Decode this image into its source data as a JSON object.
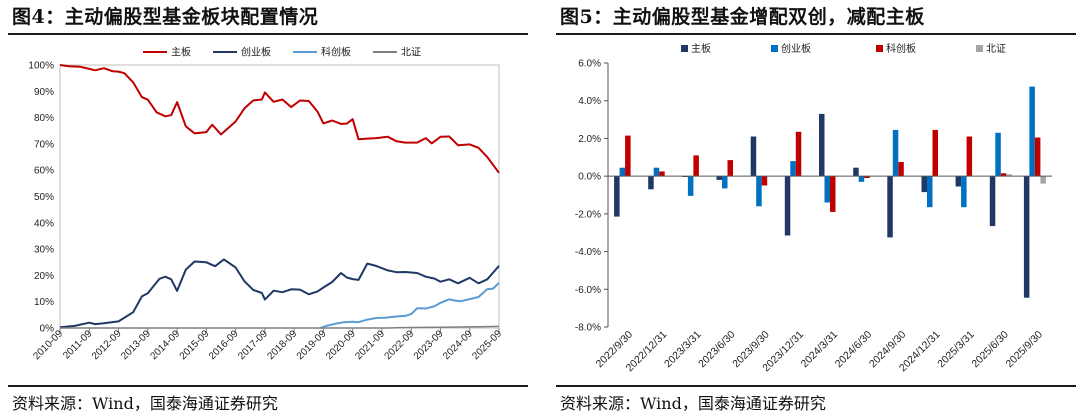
{
  "chart_data": [
    {
      "type": "line",
      "title": "图4：主动偏股型基金板块配置情况",
      "source": "资料来源：Wind，国泰海通证券研究",
      "x": [
        "2010-09",
        "2011-09",
        "2012-09",
        "2013-09",
        "2014-09",
        "2015-09",
        "2016-09",
        "2017-09",
        "2018-09",
        "2019-09",
        "2020-09",
        "2021-09",
        "2022-09",
        "2023-09",
        "2024-09",
        "2025-09"
      ],
      "yticks": [
        "0%",
        "10%",
        "20%",
        "30%",
        "40%",
        "50%",
        "60%",
        "70%",
        "80%",
        "90%",
        "100%"
      ],
      "ylim": [
        0,
        100
      ],
      "legend_position": "top",
      "series": [
        {
          "name": "主板",
          "color": "#c00000",
          "values": [
            [
              0,
              100
            ],
            [
              0.3,
              99.5
            ],
            [
              0.7,
              99.3
            ],
            [
              1,
              98.5
            ],
            [
              1.2,
              98
            ],
            [
              1.5,
              98.8
            ],
            [
              1.8,
              97.6
            ],
            [
              2,
              97.5
            ],
            [
              2.2,
              96.9
            ],
            [
              2.5,
              93.4
            ],
            [
              2.8,
              87.8
            ],
            [
              3,
              86.8
            ],
            [
              3.3,
              82
            ],
            [
              3.6,
              80.5
            ],
            [
              3.8,
              80.9
            ],
            [
              4,
              85.9
            ],
            [
              4.3,
              76.7
            ],
            [
              4.6,
              74
            ],
            [
              5,
              74.5
            ],
            [
              5.2,
              77.3
            ],
            [
              5.5,
              73.6
            ],
            [
              5.8,
              76.5
            ],
            [
              6,
              78.5
            ],
            [
              6.3,
              83.5
            ],
            [
              6.6,
              86.5
            ],
            [
              6.9,
              86.9
            ],
            [
              7,
              89.6
            ],
            [
              7.3,
              86
            ],
            [
              7.6,
              86.9
            ],
            [
              7.9,
              84
            ],
            [
              8.2,
              86.5
            ],
            [
              8.5,
              86.3
            ],
            [
              8.8,
              82.3
            ],
            [
              9,
              77.8
            ],
            [
              9.3,
              78.9
            ],
            [
              9.6,
              77.6
            ],
            [
              9.8,
              77.7
            ],
            [
              10,
              79.4
            ],
            [
              10.2,
              71.8
            ],
            [
              10.5,
              72
            ],
            [
              10.8,
              72.2
            ],
            [
              11.2,
              72.7
            ],
            [
              11.5,
              71
            ],
            [
              11.8,
              70.5
            ],
            [
              12.2,
              70.5
            ],
            [
              12.5,
              72.2
            ],
            [
              12.7,
              70.2
            ],
            [
              13,
              72.7
            ],
            [
              13.3,
              72.8
            ],
            [
              13.6,
              69.5
            ],
            [
              14,
              69.8
            ],
            [
              14.3,
              68.5
            ],
            [
              14.6,
              65
            ],
            [
              15,
              59
            ]
          ]
        },
        {
          "name": "创业板",
          "color": "#1f3864",
          "values": [
            [
              0,
              0.3
            ],
            [
              0.5,
              0.8
            ],
            [
              1,
              2
            ],
            [
              1.2,
              1.5
            ],
            [
              1.5,
              1.8
            ],
            [
              2,
              2.5
            ],
            [
              2.5,
              6
            ],
            [
              2.8,
              12
            ],
            [
              3,
              13.2
            ],
            [
              3.4,
              18.7
            ],
            [
              3.6,
              19.5
            ],
            [
              3.8,
              18.5
            ],
            [
              4,
              14.1
            ],
            [
              4.3,
              22.2
            ],
            [
              4.6,
              25.3
            ],
            [
              5,
              25
            ],
            [
              5.3,
              23.5
            ],
            [
              5.6,
              26.1
            ],
            [
              6,
              23
            ],
            [
              6.3,
              17.8
            ],
            [
              6.6,
              14.5
            ],
            [
              6.9,
              13.3
            ],
            [
              7,
              10.8
            ],
            [
              7.3,
              14.2
            ],
            [
              7.6,
              13.6
            ],
            [
              7.9,
              14.7
            ],
            [
              8.2,
              14.6
            ],
            [
              8.5,
              12.8
            ],
            [
              8.8,
              13.9
            ],
            [
              9,
              15.4
            ],
            [
              9.3,
              17.5
            ],
            [
              9.6,
              20.9
            ],
            [
              9.8,
              19.2
            ],
            [
              10,
              18.6
            ],
            [
              10.2,
              18.3
            ],
            [
              10.5,
              24.5
            ],
            [
              10.8,
              23.6
            ],
            [
              11.2,
              21.9
            ],
            [
              11.5,
              21.2
            ],
            [
              11.8,
              21.3
            ],
            [
              12.2,
              20.9
            ],
            [
              12.5,
              19.5
            ],
            [
              12.8,
              18.8
            ],
            [
              13,
              17.6
            ],
            [
              13.3,
              18.5
            ],
            [
              13.6,
              17
            ],
            [
              14,
              19.1
            ],
            [
              14.3,
              17
            ],
            [
              14.6,
              18.5
            ],
            [
              15,
              23.6
            ]
          ]
        },
        {
          "name": "科创板",
          "color": "#5b9bd5",
          "values": [
            [
              8.9,
              0
            ],
            [
              9.1,
              0.8
            ],
            [
              9.4,
              1.6
            ],
            [
              9.7,
              2.2
            ],
            [
              10,
              2.4
            ],
            [
              10.2,
              2.2
            ],
            [
              10.5,
              3.2
            ],
            [
              10.8,
              3.8
            ],
            [
              11.1,
              3.9
            ],
            [
              11.4,
              4.3
            ],
            [
              11.6,
              4.5
            ],
            [
              11.8,
              4.6
            ],
            [
              12,
              5.3
            ],
            [
              12.2,
              7.5
            ],
            [
              12.5,
              7.4
            ],
            [
              12.8,
              8.3
            ],
            [
              13,
              9.6
            ],
            [
              13.3,
              10.9
            ],
            [
              13.5,
              10.4
            ],
            [
              13.7,
              10.2
            ],
            [
              14,
              11
            ],
            [
              14.3,
              11.8
            ],
            [
              14.6,
              14.8
            ],
            [
              14.8,
              15
            ],
            [
              15,
              17.2
            ]
          ]
        },
        {
          "name": "北证",
          "color": "#7f7f7f",
          "values": [
            [
              0,
              0
            ],
            [
              11.2,
              0
            ],
            [
              11.5,
              0.1
            ],
            [
              12,
              0.2
            ],
            [
              13,
              0.3
            ],
            [
              14,
              0.4
            ],
            [
              15,
              0.6
            ]
          ]
        }
      ]
    },
    {
      "type": "bar",
      "title": "图5：主动偏股型基金增配双创，减配主板",
      "source": "资料来源：Wind，国泰海通证券研究",
      "categories": [
        "2022/9/30",
        "2022/12/31",
        "2023/3/31",
        "2023/6/30",
        "2023/9/30",
        "2023/12/31",
        "2024/3/31",
        "2024/6/30",
        "2024/9/30",
        "2024/12/31",
        "2025/3/31",
        "2025/6/30",
        "2025/9/30"
      ],
      "yticks": [
        "-8.0%",
        "-6.0%",
        "-4.0%",
        "-2.0%",
        "0.0%",
        "2.0%",
        "4.0%",
        "6.0%"
      ],
      "ylim": [
        -8,
        6
      ],
      "legend_position": "top",
      "series": [
        {
          "name": "主板",
          "color": "#1f3864",
          "values": [
            -2.15,
            -0.7,
            -0.05,
            -0.2,
            2.1,
            -3.15,
            3.3,
            0.45,
            -3.25,
            -0.85,
            -0.55,
            -2.65,
            -6.45
          ]
        },
        {
          "name": "创业板",
          "color": "#0070c0",
          "values": [
            0.45,
            0.45,
            -1.05,
            -0.65,
            -1.6,
            0.8,
            -1.4,
            -0.3,
            2.45,
            -1.65,
            -1.65,
            2.3,
            4.75
          ]
        },
        {
          "name": "科创板",
          "color": "#c00000",
          "values": [
            2.15,
            0.25,
            1.1,
            0.85,
            -0.5,
            2.35,
            -1.9,
            -0.1,
            0.75,
            2.45,
            2.1,
            0.15,
            2.05
          ]
        },
        {
          "name": "北证",
          "color": "#a6a6a6",
          "values": [
            0,
            0,
            0,
            0,
            0,
            0,
            0,
            0,
            0,
            0,
            0,
            0.1,
            -0.4
          ]
        }
      ]
    }
  ]
}
